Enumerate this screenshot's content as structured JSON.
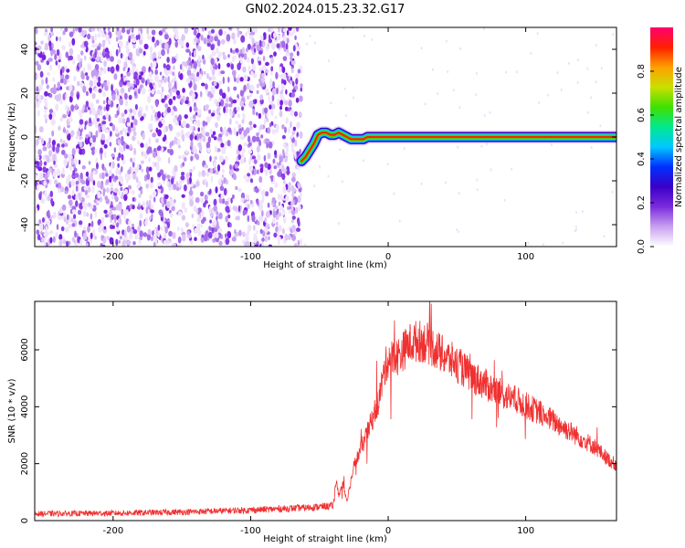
{
  "title": "GN02.2024.015.23.32.G17",
  "chart_data": [
    {
      "type": "heatmap",
      "xlabel": "Height of straight line (km)",
      "ylabel": "Frequency (Hz)",
      "xlim": [
        -257,
        166
      ],
      "ylim": [
        -50,
        50
      ],
      "xticks": [
        -200,
        -100,
        0,
        100
      ],
      "yticks": [
        -40,
        -20,
        0,
        20,
        40
      ],
      "noise_region_x": [
        -257,
        -63
      ],
      "signal_ridge": {
        "x": [
          -63,
          -60,
          -57,
          -54,
          -51,
          -48,
          -45,
          -42,
          -39,
          -36,
          -33,
          -30,
          -27,
          -24,
          -21,
          -18,
          -15,
          -10,
          0,
          50,
          100,
          166
        ],
        "y": [
          -11,
          -9,
          -6,
          -3,
          1,
          2,
          2,
          1,
          1,
          2,
          1,
          0,
          -1,
          -1,
          -1,
          -1,
          0,
          0,
          0,
          0,
          0,
          0
        ]
      },
      "colorbar": {
        "label": "Normalized spectral amplitude",
        "range": [
          0,
          1
        ],
        "ticks": [
          0.0,
          0.2,
          0.4,
          0.6,
          0.8
        ],
        "colors": [
          "#ffffff",
          "#c8a0f0",
          "#7a2bdc",
          "#3a00c8",
          "#0030ff",
          "#00c8ff",
          "#00e890",
          "#40e000",
          "#c8e000",
          "#ffa000",
          "#ff2000",
          "#ff0070"
        ]
      }
    },
    {
      "type": "line",
      "xlabel": "Height of straight line (km)",
      "ylabel": "SNR (10 * v/v)",
      "xlim": [
        -257,
        166
      ],
      "ylim": [
        0,
        7700
      ],
      "xticks": [
        -200,
        -100,
        0,
        100
      ],
      "yticks": [
        0,
        2000,
        4000,
        6000
      ],
      "color": "#f03030",
      "series": [
        {
          "x": [
            -257,
            -200,
            -150,
            -100,
            -60,
            -40,
            -38,
            -36,
            -33,
            -30,
            -25,
            -20,
            -15,
            -10,
            -7,
            -5,
            -2,
            0,
            5,
            10,
            15,
            20,
            25,
            30,
            35,
            40,
            50,
            60,
            70,
            80,
            90,
            100,
            110,
            120,
            130,
            140,
            150,
            160,
            166
          ],
          "values": [
            240,
            260,
            300,
            370,
            450,
            520,
            1400,
            900,
            1300,
            700,
            1900,
            2500,
            3100,
            3800,
            4200,
            4700,
            5400,
            5700,
            5700,
            5900,
            6200,
            6300,
            6300,
            6200,
            6000,
            5800,
            5500,
            5100,
            4800,
            4500,
            4300,
            4050,
            3800,
            3500,
            3200,
            2900,
            2600,
            2150,
            1950
          ]
        }
      ]
    }
  ]
}
